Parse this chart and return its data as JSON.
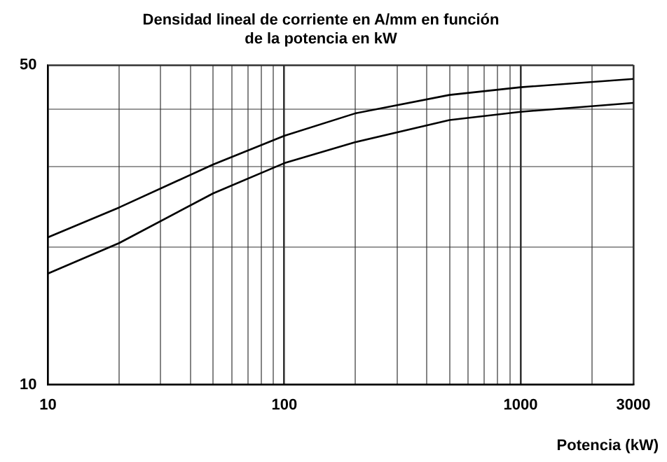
{
  "chart_data": {
    "type": "line",
    "title": "Densidad lineal de corriente en A/mm en función\nde la potencia en kW",
    "xlabel": "Potencia (kW)",
    "log": "xy",
    "grid": true,
    "legend": false,
    "marker": "none",
    "line_style": "solid",
    "x": [
      10,
      20,
      50,
      100,
      200,
      500,
      1000,
      3000
    ],
    "xlim": [
      10,
      3000
    ],
    "xticks": [
      10,
      {
        "value": 20,
        "label": null
      },
      {
        "value": 30,
        "label": null
      },
      {
        "value": 40,
        "label": null
      },
      {
        "value": 50,
        "label": null
      },
      {
        "value": 60,
        "label": null
      },
      {
        "value": 70,
        "label": null
      },
      {
        "value": 80,
        "label": null
      },
      {
        "value": 90,
        "label": null
      },
      100,
      {
        "value": 200,
        "label": null
      },
      {
        "value": 300,
        "label": null
      },
      {
        "value": 400,
        "label": null
      },
      {
        "value": 500,
        "label": null
      },
      {
        "value": 600,
        "label": null
      },
      {
        "value": 700,
        "label": null
      },
      {
        "value": 800,
        "label": null
      },
      {
        "value": 900,
        "label": null
      },
      1000,
      {
        "value": 2000,
        "label": null
      },
      3000
    ],
    "ylim": [
      10,
      50
    ],
    "yticks": [
      10,
      {
        "value": 20,
        "label": null
      },
      {
        "value": 30,
        "label": null
      },
      {
        "value": 40,
        "label": null
      },
      50
    ],
    "series": [
      {
        "color": "#000000",
        "values": [
          21,
          24.4,
          30.3,
          35,
          39.2,
          43,
          44.7,
          46.6
        ]
      },
      {
        "color": "#000000",
        "values": [
          17.5,
          20.4,
          26.2,
          30.5,
          33.9,
          37.9,
          39.5,
          41.3
        ]
      }
    ]
  }
}
